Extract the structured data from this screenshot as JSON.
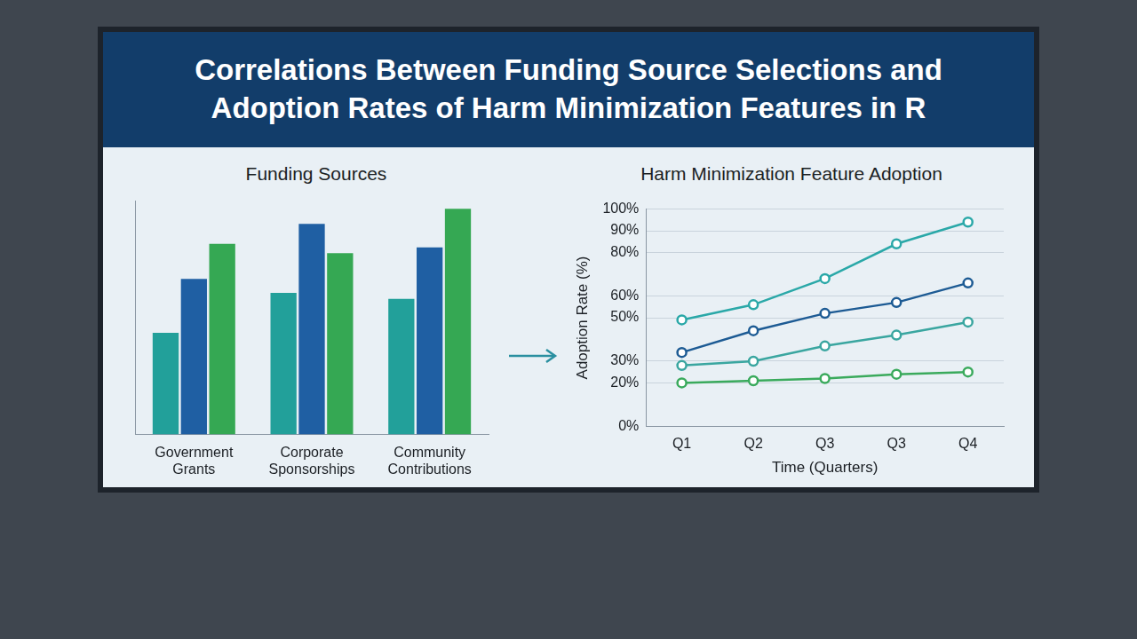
{
  "title": "Correlations Between Funding Source Selections and Adoption Rates of Harm Minimization Features in R",
  "chart_data": [
    {
      "type": "bar",
      "title": "Funding Sources",
      "categories": [
        "Government Grants",
        "Corporate Sponsorships",
        "Community Contributions"
      ],
      "series": [
        {
          "color": "#22a09a",
          "values": [
            87,
            121,
            116
          ]
        },
        {
          "color": "#1f5fa3",
          "values": [
            133,
            180,
            160
          ]
        },
        {
          "color": "#35a853",
          "values": [
            163,
            155,
            193
          ]
        }
      ],
      "ylim": [
        0,
        200
      ],
      "grid": false,
      "tick_labels": "x"
    },
    {
      "type": "line",
      "title": "Harm Minimization Feature Adoption",
      "x_label": "Time (Quarters)",
      "y_label": "Adoption Rate (%)",
      "categories": [
        "Q1",
        "Q2",
        "Q3",
        "Q3",
        "Q4"
      ],
      "series": [
        {
          "color": "#2aa8a8",
          "values": [
            49,
            56,
            68,
            84,
            94
          ]
        },
        {
          "color": "#1d5b94",
          "values": [
            34,
            44,
            52,
            57,
            66
          ]
        },
        {
          "color": "#3aa6a0",
          "values": [
            28,
            30,
            37,
            42,
            48
          ]
        },
        {
          "color": "#3aaa5c",
          "values": [
            20,
            21,
            22,
            24,
            25
          ]
        }
      ],
      "ylim": [
        0,
        100
      ],
      "yticks": [
        {
          "value": 0,
          "label": "0%"
        },
        {
          "value": 20,
          "label": "20%"
        },
        {
          "value": 30,
          "label": "30%"
        },
        {
          "value": 50,
          "label": "50%"
        },
        {
          "value": 60,
          "label": "60%"
        },
        {
          "value": 80,
          "label": "80%"
        },
        {
          "value": 90,
          "label": "90%"
        },
        {
          "value": 100,
          "label": "100%"
        }
      ],
      "grid": true,
      "marker": "circle"
    }
  ]
}
